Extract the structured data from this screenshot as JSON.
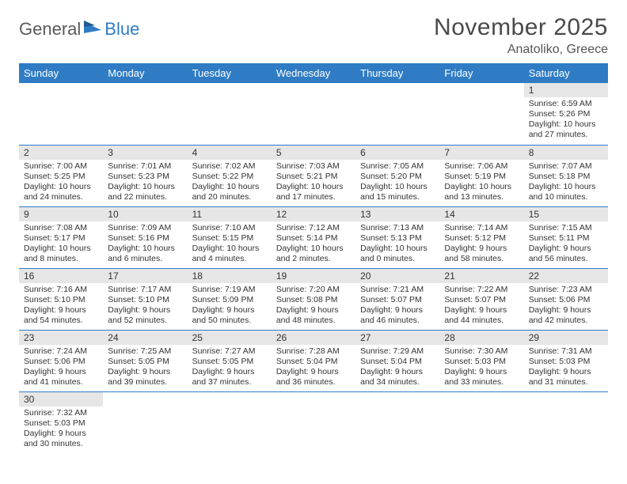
{
  "logo": {
    "text1": "General",
    "text2": "Blue"
  },
  "title": "November 2025",
  "location": "Anatoliko, Greece",
  "colors": {
    "header_bg": "#2f7cc4",
    "header_fg": "#ffffff",
    "daynum_bg": "#e6e6e6",
    "rule": "#2f7cc4",
    "page_bg": "#ffffff",
    "text": "#333333"
  },
  "day_headers": [
    "Sunday",
    "Monday",
    "Tuesday",
    "Wednesday",
    "Thursday",
    "Friday",
    "Saturday"
  ],
  "weeks": [
    [
      null,
      null,
      null,
      null,
      null,
      null,
      {
        "n": "1",
        "sr": "Sunrise: 6:59 AM",
        "ss": "Sunset: 5:26 PM",
        "d1": "Daylight: 10 hours",
        "d2": "and 27 minutes."
      }
    ],
    [
      {
        "n": "2",
        "sr": "Sunrise: 7:00 AM",
        "ss": "Sunset: 5:25 PM",
        "d1": "Daylight: 10 hours",
        "d2": "and 24 minutes."
      },
      {
        "n": "3",
        "sr": "Sunrise: 7:01 AM",
        "ss": "Sunset: 5:23 PM",
        "d1": "Daylight: 10 hours",
        "d2": "and 22 minutes."
      },
      {
        "n": "4",
        "sr": "Sunrise: 7:02 AM",
        "ss": "Sunset: 5:22 PM",
        "d1": "Daylight: 10 hours",
        "d2": "and 20 minutes."
      },
      {
        "n": "5",
        "sr": "Sunrise: 7:03 AM",
        "ss": "Sunset: 5:21 PM",
        "d1": "Daylight: 10 hours",
        "d2": "and 17 minutes."
      },
      {
        "n": "6",
        "sr": "Sunrise: 7:05 AM",
        "ss": "Sunset: 5:20 PM",
        "d1": "Daylight: 10 hours",
        "d2": "and 15 minutes."
      },
      {
        "n": "7",
        "sr": "Sunrise: 7:06 AM",
        "ss": "Sunset: 5:19 PM",
        "d1": "Daylight: 10 hours",
        "d2": "and 13 minutes."
      },
      {
        "n": "8",
        "sr": "Sunrise: 7:07 AM",
        "ss": "Sunset: 5:18 PM",
        "d1": "Daylight: 10 hours",
        "d2": "and 10 minutes."
      }
    ],
    [
      {
        "n": "9",
        "sr": "Sunrise: 7:08 AM",
        "ss": "Sunset: 5:17 PM",
        "d1": "Daylight: 10 hours",
        "d2": "and 8 minutes."
      },
      {
        "n": "10",
        "sr": "Sunrise: 7:09 AM",
        "ss": "Sunset: 5:16 PM",
        "d1": "Daylight: 10 hours",
        "d2": "and 6 minutes."
      },
      {
        "n": "11",
        "sr": "Sunrise: 7:10 AM",
        "ss": "Sunset: 5:15 PM",
        "d1": "Daylight: 10 hours",
        "d2": "and 4 minutes."
      },
      {
        "n": "12",
        "sr": "Sunrise: 7:12 AM",
        "ss": "Sunset: 5:14 PM",
        "d1": "Daylight: 10 hours",
        "d2": "and 2 minutes."
      },
      {
        "n": "13",
        "sr": "Sunrise: 7:13 AM",
        "ss": "Sunset: 5:13 PM",
        "d1": "Daylight: 10 hours",
        "d2": "and 0 minutes."
      },
      {
        "n": "14",
        "sr": "Sunrise: 7:14 AM",
        "ss": "Sunset: 5:12 PM",
        "d1": "Daylight: 9 hours",
        "d2": "and 58 minutes."
      },
      {
        "n": "15",
        "sr": "Sunrise: 7:15 AM",
        "ss": "Sunset: 5:11 PM",
        "d1": "Daylight: 9 hours",
        "d2": "and 56 minutes."
      }
    ],
    [
      {
        "n": "16",
        "sr": "Sunrise: 7:16 AM",
        "ss": "Sunset: 5:10 PM",
        "d1": "Daylight: 9 hours",
        "d2": "and 54 minutes."
      },
      {
        "n": "17",
        "sr": "Sunrise: 7:17 AM",
        "ss": "Sunset: 5:10 PM",
        "d1": "Daylight: 9 hours",
        "d2": "and 52 minutes."
      },
      {
        "n": "18",
        "sr": "Sunrise: 7:19 AM",
        "ss": "Sunset: 5:09 PM",
        "d1": "Daylight: 9 hours",
        "d2": "and 50 minutes."
      },
      {
        "n": "19",
        "sr": "Sunrise: 7:20 AM",
        "ss": "Sunset: 5:08 PM",
        "d1": "Daylight: 9 hours",
        "d2": "and 48 minutes."
      },
      {
        "n": "20",
        "sr": "Sunrise: 7:21 AM",
        "ss": "Sunset: 5:07 PM",
        "d1": "Daylight: 9 hours",
        "d2": "and 46 minutes."
      },
      {
        "n": "21",
        "sr": "Sunrise: 7:22 AM",
        "ss": "Sunset: 5:07 PM",
        "d1": "Daylight: 9 hours",
        "d2": "and 44 minutes."
      },
      {
        "n": "22",
        "sr": "Sunrise: 7:23 AM",
        "ss": "Sunset: 5:06 PM",
        "d1": "Daylight: 9 hours",
        "d2": "and 42 minutes."
      }
    ],
    [
      {
        "n": "23",
        "sr": "Sunrise: 7:24 AM",
        "ss": "Sunset: 5:06 PM",
        "d1": "Daylight: 9 hours",
        "d2": "and 41 minutes."
      },
      {
        "n": "24",
        "sr": "Sunrise: 7:25 AM",
        "ss": "Sunset: 5:05 PM",
        "d1": "Daylight: 9 hours",
        "d2": "and 39 minutes."
      },
      {
        "n": "25",
        "sr": "Sunrise: 7:27 AM",
        "ss": "Sunset: 5:05 PM",
        "d1": "Daylight: 9 hours",
        "d2": "and 37 minutes."
      },
      {
        "n": "26",
        "sr": "Sunrise: 7:28 AM",
        "ss": "Sunset: 5:04 PM",
        "d1": "Daylight: 9 hours",
        "d2": "and 36 minutes."
      },
      {
        "n": "27",
        "sr": "Sunrise: 7:29 AM",
        "ss": "Sunset: 5:04 PM",
        "d1": "Daylight: 9 hours",
        "d2": "and 34 minutes."
      },
      {
        "n": "28",
        "sr": "Sunrise: 7:30 AM",
        "ss": "Sunset: 5:03 PM",
        "d1": "Daylight: 9 hours",
        "d2": "and 33 minutes."
      },
      {
        "n": "29",
        "sr": "Sunrise: 7:31 AM",
        "ss": "Sunset: 5:03 PM",
        "d1": "Daylight: 9 hours",
        "d2": "and 31 minutes."
      }
    ],
    [
      {
        "n": "30",
        "sr": "Sunrise: 7:32 AM",
        "ss": "Sunset: 5:03 PM",
        "d1": "Daylight: 9 hours",
        "d2": "and 30 minutes."
      },
      null,
      null,
      null,
      null,
      null,
      null
    ]
  ]
}
